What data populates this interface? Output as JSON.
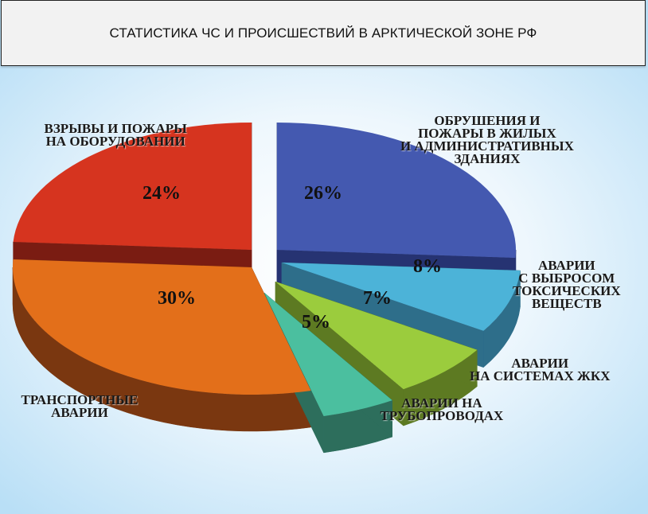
{
  "header": {
    "title": "СТАТИСТИКА ЧС И ПРОИСШЕСТВИЙ В АРКТИЧЕСКОЙ ЗОНЕ РФ"
  },
  "chart_data": {
    "type": "pie",
    "title": "СТАТИСТИКА ЧС И ПРОИСШЕСТВИЙ В АРКТИЧЕСКОЙ ЗОНЕ РФ",
    "style": "3d-exploded",
    "categories": [
      "ОБРУШЕНИЯ И\nПОЖАРЫ В ЖИЛЫХ\nИ АДМИНИСТРАТИВНЫХ\nЗДАНИЯХ",
      "АВАРИИ\nС ВЫБРОСОМ\nТОКСИЧЕСКИХ\nВЕЩЕСТВ",
      "АВАРИИ\nНА СИСТЕМАХ ЖКХ",
      "АВАРИИ НА\nТРУБОПРОВОДАХ",
      "ТРАНСПОРТНЫЕ\nАВАРИИ",
      "ВЗРЫВЫ И ПОЖАРЫ\nНА ОБОРУДОВАНИИ"
    ],
    "values": [
      26,
      8,
      7,
      5,
      30,
      24
    ],
    "value_labels": [
      "26%",
      "8%",
      "7%",
      "5%",
      "30%",
      "24%"
    ],
    "colors": [
      "#4459b0",
      "#4cb3d8",
      "#9bcc3d",
      "#4bbf9f",
      "#e36f1a",
      "#d6341f"
    ],
    "side_colors": [
      "#263372",
      "#2e6e8a",
      "#5d7a22",
      "#2d6e5c",
      "#7a3710",
      "#7a1c12"
    ]
  }
}
